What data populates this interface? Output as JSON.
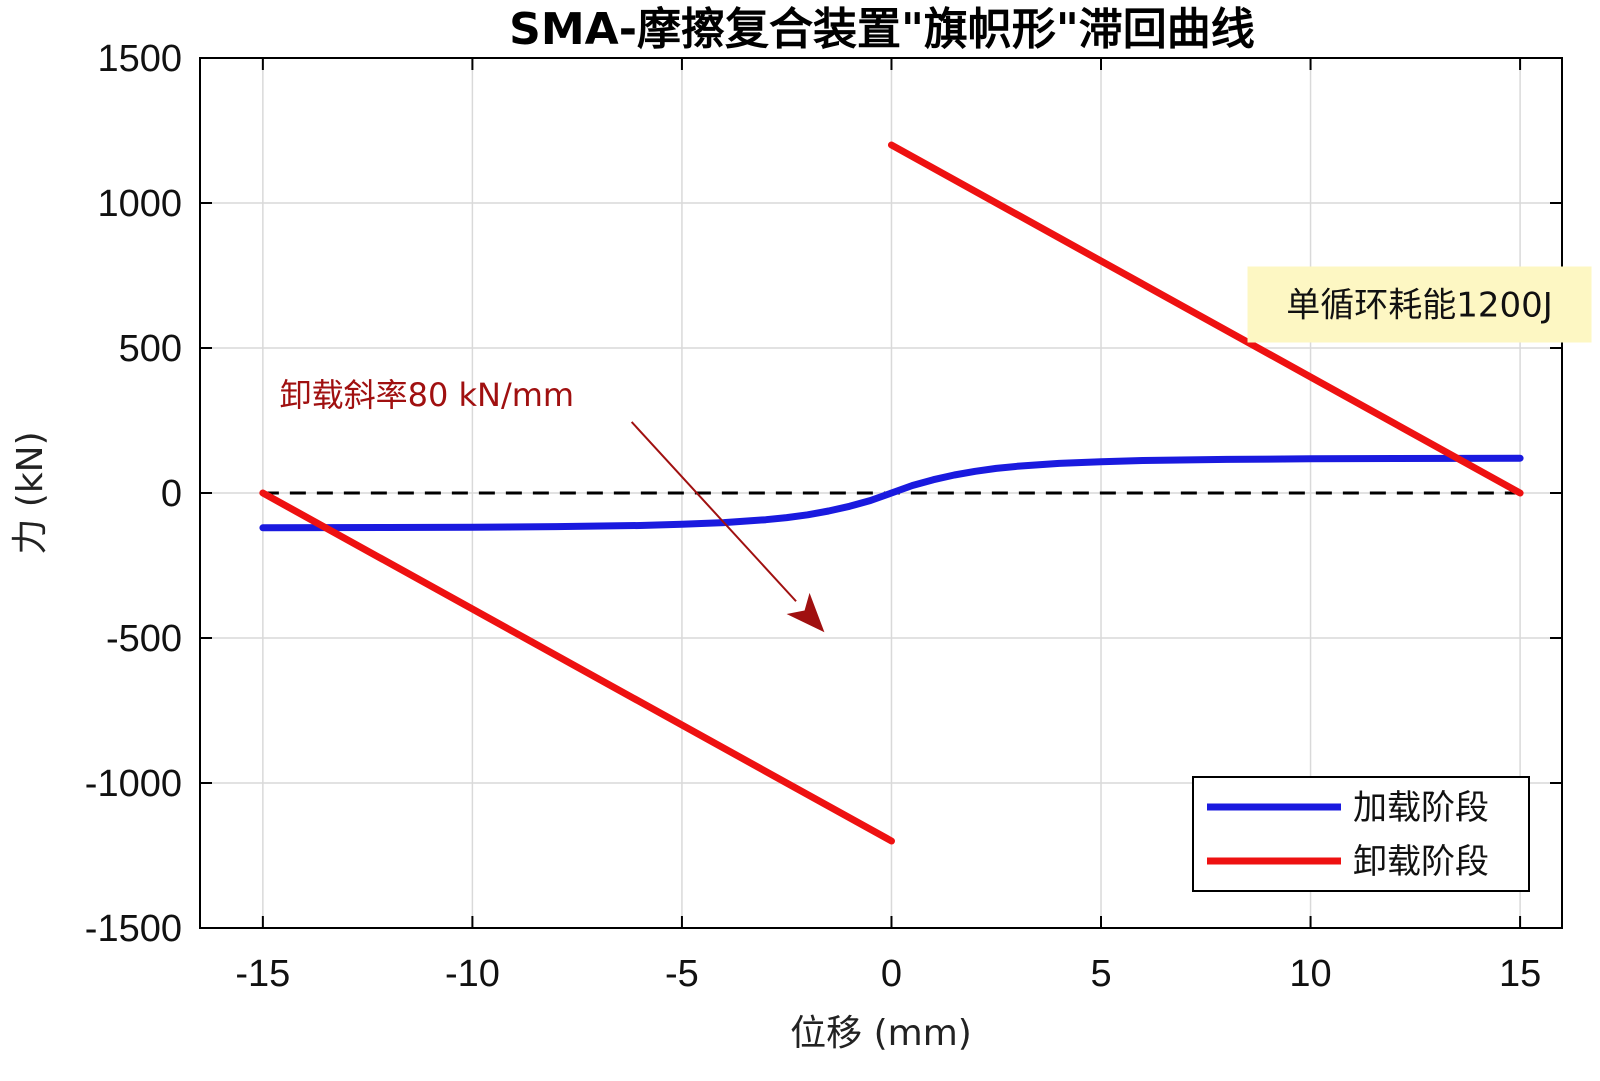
{
  "chart_data": {
    "type": "line",
    "title": "SMA-摩擦复合装置\"旗帜形\"滞回曲线",
    "xlabel": "位移 (mm)",
    "ylabel": "力 (kN)",
    "xlim": [
      -16.5,
      16
    ],
    "ylim": [
      -1500,
      1500
    ],
    "xticks": [
      -15,
      -10,
      -5,
      0,
      5,
      10,
      15
    ],
    "yticks": [
      -1500,
      -1000,
      -500,
      0,
      500,
      1000,
      1500
    ],
    "xtick_labels": [
      "-15",
      "-10",
      "-5",
      "0",
      "5",
      "10",
      "15"
    ],
    "ytick_labels": [
      "-1500",
      "-1000",
      "-500",
      "0",
      "500",
      "1000",
      "1500"
    ],
    "grid": true,
    "legend_position": "bottom-right",
    "series": [
      {
        "name": "加载阶段",
        "color": "#1a1adf",
        "x": [
          -15,
          -12,
          -10,
          -8,
          -6,
          -5,
          -4,
          -3,
          -2.5,
          -2,
          -1.5,
          -1,
          -0.5,
          0,
          0.5,
          1,
          1.5,
          2,
          2.5,
          3,
          4,
          5,
          6,
          8,
          10,
          12,
          15
        ],
        "y": [
          -120,
          -119,
          -118,
          -116,
          -112,
          -108,
          -102,
          -92,
          -85,
          -75,
          -62,
          -46,
          -26,
          0,
          26,
          46,
          62,
          75,
          85,
          92,
          102,
          108,
          112,
          116,
          118,
          119,
          120
        ]
      },
      {
        "name": "卸载阶段",
        "color": "#ee1111",
        "segments": [
          {
            "x": [
              0,
              15
            ],
            "y": [
              1200,
              0
            ]
          },
          {
            "x": [
              -15,
              0
            ],
            "y": [
              0,
              -1200
            ]
          }
        ]
      }
    ],
    "reference_line": {
      "y": 0,
      "style": "dashed",
      "color": "#000000"
    },
    "annotations": [
      {
        "text": "卸载斜率80 kN/mm",
        "color": "#a01010",
        "text_at": [
          -14.6,
          300
        ],
        "arrow_from": [
          -6.2,
          245
        ],
        "arrow_to": [
          -1.6,
          -480
        ]
      },
      {
        "text": "单循环耗能1200J",
        "background": "#fdf7c3",
        "text_at": [
          12.6,
          650
        ]
      }
    ]
  }
}
